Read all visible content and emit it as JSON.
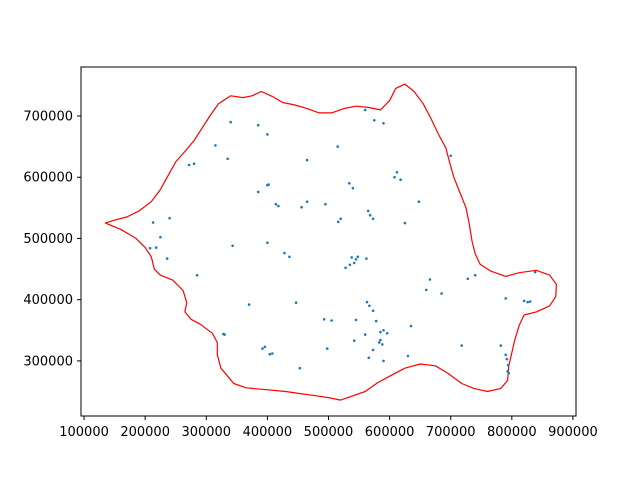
{
  "chart_data": {
    "type": "scatter",
    "title": "",
    "xlabel": "",
    "ylabel": "",
    "xlim": [
      95000,
      905000
    ],
    "ylim": [
      210000,
      780000
    ],
    "x_ticks": [
      100000,
      200000,
      300000,
      400000,
      500000,
      600000,
      700000,
      800000,
      900000
    ],
    "y_ticks": [
      300000,
      400000,
      500000,
      600000,
      700000
    ],
    "x_tick_labels": [
      "100000",
      "200000",
      "300000",
      "400000",
      "500000",
      "600000",
      "700000",
      "800000",
      "900000"
    ],
    "y_tick_labels": [
      "300000",
      "400000",
      "500000",
      "600000",
      "700000"
    ],
    "grid": false,
    "boundary_color": "#ff0000",
    "point_color": "#1f77b4",
    "boundary": [
      [
        135000,
        525000
      ],
      [
        160000,
        515000
      ],
      [
        185000,
        500000
      ],
      [
        200000,
        485000
      ],
      [
        210000,
        470000
      ],
      [
        215000,
        450000
      ],
      [
        225000,
        440000
      ],
      [
        245000,
        432000
      ],
      [
        262000,
        415000
      ],
      [
        268000,
        395000
      ],
      [
        265000,
        380000
      ],
      [
        275000,
        368000
      ],
      [
        290000,
        360000
      ],
      [
        310000,
        345000
      ],
      [
        318000,
        330000
      ],
      [
        318000,
        310000
      ],
      [
        324000,
        288000
      ],
      [
        335000,
        275000
      ],
      [
        345000,
        263000
      ],
      [
        365000,
        256000
      ],
      [
        398000,
        253000
      ],
      [
        430000,
        250000
      ],
      [
        458000,
        246000
      ],
      [
        480000,
        243000
      ],
      [
        500000,
        240000
      ],
      [
        520000,
        236000
      ],
      [
        540000,
        243000
      ],
      [
        560000,
        250000
      ],
      [
        580000,
        264000
      ],
      [
        600000,
        275000
      ],
      [
        625000,
        288000
      ],
      [
        650000,
        295000
      ],
      [
        675000,
        292000
      ],
      [
        695000,
        280000
      ],
      [
        718000,
        263000
      ],
      [
        738000,
        255000
      ],
      [
        760000,
        250000
      ],
      [
        782000,
        255000
      ],
      [
        793000,
        268000
      ],
      [
        795000,
        292000
      ],
      [
        800000,
        313000
      ],
      [
        805000,
        335000
      ],
      [
        812000,
        358000
      ],
      [
        820000,
        375000
      ],
      [
        840000,
        380000
      ],
      [
        862000,
        390000
      ],
      [
        872000,
        405000
      ],
      [
        873000,
        425000
      ],
      [
        862000,
        440000
      ],
      [
        840000,
        448000
      ],
      [
        812000,
        444000
      ],
      [
        790000,
        438000
      ],
      [
        765000,
        447000
      ],
      [
        748000,
        458000
      ],
      [
        740000,
        475000
      ],
      [
        735000,
        495000
      ],
      [
        730000,
        525000
      ],
      [
        725000,
        550000
      ],
      [
        715000,
        575000
      ],
      [
        705000,
        600000
      ],
      [
        698000,
        625000
      ],
      [
        692000,
        648000
      ],
      [
        680000,
        670000
      ],
      [
        668000,
        695000
      ],
      [
        655000,
        720000
      ],
      [
        640000,
        740000
      ],
      [
        625000,
        752000
      ],
      [
        610000,
        745000
      ],
      [
        600000,
        725000
      ],
      [
        585000,
        710000
      ],
      [
        565000,
        714000
      ],
      [
        545000,
        716000
      ],
      [
        525000,
        712000
      ],
      [
        505000,
        705000
      ],
      [
        485000,
        705000
      ],
      [
        465000,
        712000
      ],
      [
        445000,
        718000
      ],
      [
        425000,
        722000
      ],
      [
        408000,
        732000
      ],
      [
        390000,
        740000
      ],
      [
        375000,
        733000
      ],
      [
        360000,
        730000
      ],
      [
        340000,
        733000
      ],
      [
        320000,
        720000
      ],
      [
        306000,
        700000
      ],
      [
        293000,
        680000
      ],
      [
        280000,
        660000
      ],
      [
        265000,
        642000
      ],
      [
        250000,
        625000
      ],
      [
        236000,
        600000
      ],
      [
        225000,
        580000
      ],
      [
        210000,
        560000
      ],
      [
        190000,
        545000
      ],
      [
        170000,
        535000
      ],
      [
        150000,
        530000
      ],
      [
        135000,
        525000
      ]
    ],
    "points": [
      [
        560000,
        710000
      ],
      [
        575000,
        693000
      ],
      [
        590000,
        688000
      ],
      [
        340000,
        690000
      ],
      [
        385000,
        685000
      ],
      [
        400000,
        670000
      ],
      [
        315000,
        652000
      ],
      [
        515000,
        650000
      ],
      [
        700000,
        635000
      ],
      [
        335000,
        630000
      ],
      [
        465000,
        628000
      ],
      [
        272000,
        620000
      ],
      [
        280000,
        622000
      ],
      [
        612000,
        608000
      ],
      [
        608000,
        600000
      ],
      [
        618000,
        596000
      ],
      [
        534000,
        590000
      ],
      [
        540000,
        582000
      ],
      [
        385000,
        576000
      ],
      [
        400000,
        587000
      ],
      [
        402000,
        588000
      ],
      [
        648000,
        560000
      ],
      [
        414000,
        556000
      ],
      [
        418000,
        553000
      ],
      [
        465000,
        560000
      ],
      [
        456000,
        551000
      ],
      [
        495000,
        556000
      ],
      [
        565000,
        545000
      ],
      [
        568000,
        538000
      ],
      [
        573000,
        532000
      ],
      [
        520000,
        532000
      ],
      [
        516000,
        527000
      ],
      [
        625000,
        525000
      ],
      [
        240000,
        533000
      ],
      [
        213000,
        526000
      ],
      [
        225000,
        502000
      ],
      [
        343000,
        488000
      ],
      [
        400000,
        493000
      ],
      [
        428000,
        476000
      ],
      [
        436000,
        470000
      ],
      [
        208000,
        484000
      ],
      [
        218000,
        485000
      ],
      [
        236000,
        467000
      ],
      [
        562000,
        467000
      ],
      [
        538000,
        469000
      ],
      [
        545000,
        466000
      ],
      [
        542000,
        460000
      ],
      [
        548000,
        470000
      ],
      [
        535000,
        457000
      ],
      [
        528000,
        452000
      ],
      [
        666000,
        433000
      ],
      [
        660000,
        416000
      ],
      [
        685000,
        410000
      ],
      [
        728000,
        434000
      ],
      [
        740000,
        440000
      ],
      [
        285000,
        440000
      ],
      [
        370000,
        392000
      ],
      [
        447000,
        395000
      ],
      [
        563000,
        396000
      ],
      [
        567000,
        390000
      ],
      [
        573000,
        382000
      ],
      [
        578000,
        365000
      ],
      [
        545000,
        367000
      ],
      [
        493000,
        368000
      ],
      [
        505000,
        366000
      ],
      [
        560000,
        343000
      ],
      [
        585000,
        347000
      ],
      [
        590000,
        350000
      ],
      [
        596000,
        345000
      ],
      [
        635000,
        357000
      ],
      [
        328000,
        344000
      ],
      [
        330000,
        343000
      ],
      [
        392000,
        320000
      ],
      [
        396000,
        323000
      ],
      [
        404000,
        311000
      ],
      [
        408000,
        312000
      ],
      [
        498000,
        320000
      ],
      [
        585000,
        334000
      ],
      [
        588000,
        327000
      ],
      [
        583000,
        330000
      ],
      [
        573000,
        318000
      ],
      [
        566000,
        305000
      ],
      [
        590000,
        300000
      ],
      [
        542000,
        333000
      ],
      [
        453000,
        288000
      ],
      [
        630000,
        308000
      ],
      [
        718000,
        325000
      ],
      [
        782000,
        325000
      ],
      [
        790000,
        310000
      ],
      [
        792000,
        303000
      ],
      [
        794000,
        293000
      ],
      [
        793000,
        283000
      ],
      [
        795000,
        280000
      ],
      [
        790000,
        402000
      ],
      [
        820000,
        398000
      ],
      [
        826000,
        396000
      ],
      [
        830000,
        397000
      ],
      [
        838000,
        445000
      ]
    ]
  }
}
